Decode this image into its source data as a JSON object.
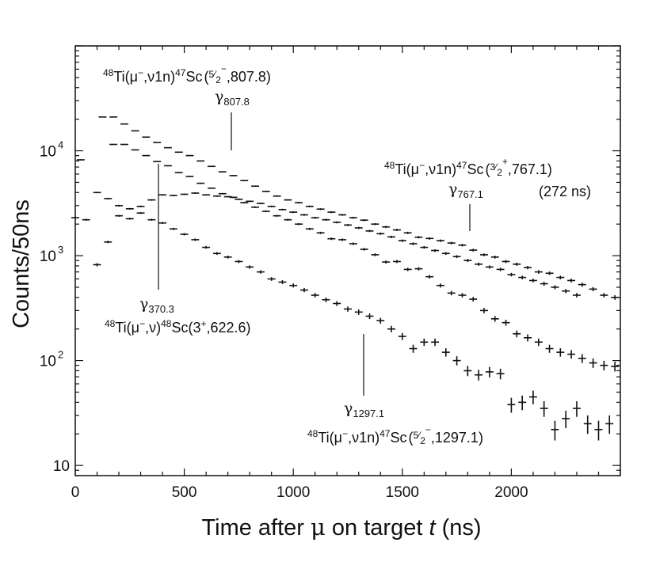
{
  "chart_data": {
    "type": "scatter",
    "xlabel": "Time after μ on target t (ns)",
    "xlabel_parts": {
      "pre": "Time after ",
      "mu": "μ",
      "mid": " on target ",
      "t": "t",
      "post": " (ns)"
    },
    "ylabel": "Counts/50ns",
    "xlim": [
      0,
      2500
    ],
    "ylim": [
      8,
      100000
    ],
    "yscale": "log",
    "grid": false,
    "x_ticks": [
      0,
      500,
      1000,
      1500,
      2000
    ],
    "x_tick_labels": [
      "0",
      "500",
      "1000",
      "1500",
      "2000"
    ],
    "y_ticks": [
      10,
      100,
      1000,
      10000
    ],
    "y_tick_labels": [
      "10",
      "10",
      "10",
      "10"
    ],
    "y_tick_exponents": [
      "",
      "2",
      "3",
      "4"
    ],
    "bin_width": 50,
    "annotations": [
      {
        "id": "a8078",
        "reaction_parts": [
          "48",
          "Ti(μ",
          "−",
          ",ν1n)",
          "47",
          "Sc",
          "(",
          "5",
          "2",
          "−",
          ",807.8)"
        ],
        "reaction": "48Ti(μ−,ν1n)47Sc(5/2−,807.8)",
        "gamma": "γ",
        "gamma_sub": "807.8"
      },
      {
        "id": "a7671",
        "reaction_parts": [
          "48",
          "Ti(μ",
          "−",
          ",ν1n)",
          "47",
          "Sc",
          "(",
          "3",
          "2",
          "+",
          ",767.1)"
        ],
        "reaction": "48Ti(μ−,ν1n)47Sc(3/2+,767.1)",
        "gamma": "γ",
        "gamma_sub": "767.1",
        "extra": "(272 ns)"
      },
      {
        "id": "a3703",
        "reaction_parts": [
          "48",
          "Ti(μ",
          "−",
          ",ν)",
          "48",
          "Sc(3",
          "+",
          ",622.6)"
        ],
        "reaction": "48Ti(μ−,ν)48Sc(3+,622.6)",
        "gamma": "γ",
        "gamma_sub": "370.3"
      },
      {
        "id": "a12971",
        "reaction_parts": [
          "48",
          "Ti(μ",
          "−",
          ",ν1n)",
          "47",
          "Sc",
          "(",
          "5",
          "2",
          "−",
          ",1297.1)"
        ],
        "reaction": "48Ti(μ−,ν1n)47Sc(5/2−,1297.1)",
        "gamma": "γ",
        "gamma_sub": "1297.1"
      }
    ],
    "series": [
      {
        "x": [
          25,
          125,
          175,
          225,
          275,
          325,
          375,
          425,
          475,
          525,
          575,
          625,
          675,
          725,
          775,
          825,
          875,
          925,
          975,
          1025,
          1075,
          1125,
          1175,
          1225,
          1275,
          1325,
          1375,
          1425,
          1475,
          1525,
          1575,
          1625,
          1675,
          1725,
          1775,
          1825,
          1875,
          1925,
          1975,
          2025,
          2075,
          2125,
          2175,
          2225,
          2275,
          2325,
          2375,
          2425,
          2475
        ],
        "y": [
          8200,
          21000,
          21000,
          18000,
          15500,
          13500,
          12000,
          10700,
          9700,
          9000,
          8000,
          7100,
          6300,
          5800,
          5200,
          4600,
          4100,
          3700,
          3400,
          3200,
          2950,
          2780,
          2600,
          2450,
          2300,
          2180,
          2000,
          1880,
          1760,
          1650,
          1500,
          1460,
          1390,
          1320,
          1260,
          1130,
          1020,
          970,
          880,
          830,
          770,
          700,
          680,
          620,
          580,
          530,
          480,
          420,
          400
        ]
      },
      {
        "x": [
          175,
          225,
          275,
          325,
          375,
          425,
          475,
          525,
          575,
          625,
          675,
          725,
          775,
          825,
          875,
          925,
          975,
          1025,
          1075,
          1125,
          1175,
          1225,
          1275,
          1325,
          1375,
          1425,
          1475,
          1525,
          1575,
          1625,
          1675,
          1725,
          1775,
          1825,
          1875,
          1925,
          1975,
          2025,
          2075,
          2125,
          2175,
          2225,
          2275,
          2325,
          2375,
          2425,
          2475
        ],
        "y": [
          11500,
          11500,
          10200,
          9000,
          7900,
          7200,
          6200,
          5700,
          4900,
          4400,
          3900,
          3600,
          3200,
          2900,
          2650,
          2400,
          2200,
          2000,
          1800,
          1650,
          1450,
          1420,
          1300,
          1150,
          1020,
          870,
          880,
          740,
          750,
          630,
          520,
          440,
          420,
          385,
          300,
          250,
          230,
          180,
          165,
          150,
          130,
          120,
          115,
          105,
          95,
          90,
          88
        ]
      },
      {
        "x": [
          100,
          150,
          200,
          250,
          300,
          350,
          400,
          450,
          500,
          550,
          600,
          650,
          700,
          750,
          800,
          850,
          900,
          950,
          1000,
          1050,
          1100,
          1150,
          1200,
          1250,
          1300,
          1350,
          1400,
          1450,
          1500,
          1550,
          1600,
          1650,
          1700,
          1750,
          1800,
          1850,
          1900,
          1950,
          2000,
          2050,
          2100,
          2150,
          2200,
          2250,
          2300
        ],
        "y": [
          4000,
          3500,
          3000,
          2800,
          2950,
          3400,
          3800,
          3750,
          3850,
          3950,
          3800,
          3700,
          3650,
          3450,
          3300,
          3150,
          2950,
          2750,
          2600,
          2450,
          2300,
          2200,
          2080,
          1960,
          1840,
          1720,
          1620,
          1510,
          1390,
          1300,
          1200,
          1120,
          1050,
          980,
          900,
          830,
          780,
          740,
          660,
          620,
          580,
          540,
          500,
          460,
          420
        ]
      },
      {
        "x": [
          0,
          50,
          100,
          150,
          200,
          250,
          300,
          350,
          400,
          450,
          500,
          550,
          600,
          650,
          700,
          750,
          800,
          850,
          900,
          950,
          1000,
          1050,
          1100,
          1150,
          1200,
          1250,
          1300,
          1350,
          1400,
          1450,
          1500,
          1550,
          1600,
          1650,
          1700,
          1750,
          1800,
          1850,
          1900,
          1950,
          2000,
          2050,
          2100,
          2150,
          2200,
          2250,
          2300,
          2350,
          2400,
          2450
        ],
        "y": [
          2300,
          2200,
          820,
          1350,
          2400,
          2250,
          2550,
          2200,
          2050,
          1800,
          1600,
          1420,
          1200,
          1050,
          970,
          880,
          780,
          700,
          600,
          560,
          520,
          470,
          420,
          380,
          350,
          310,
          290,
          265,
          240,
          200,
          170,
          130,
          150,
          150,
          120,
          100,
          80,
          73,
          78,
          75,
          38,
          40,
          45,
          35,
          22,
          28,
          35,
          25,
          22,
          25
        ]
      }
    ]
  }
}
